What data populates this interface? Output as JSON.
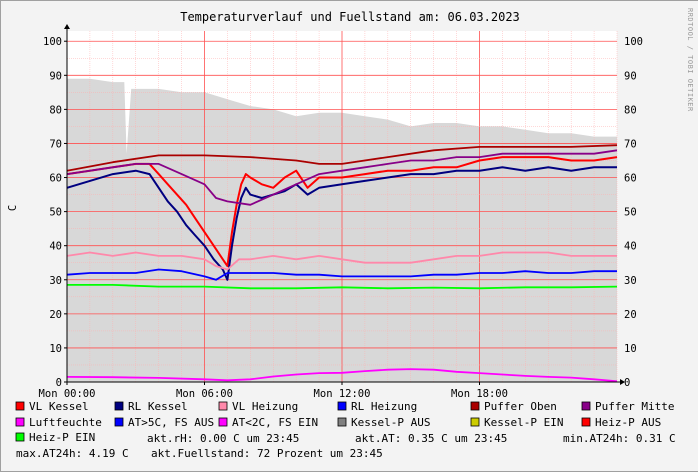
{
  "chart_data": {
    "type": "line",
    "title": "Temperaturverlauf und Fuellstand am: 06.03.2023",
    "ylabel": "C",
    "side_text": "RRDTOOL / TOBI OETIKER",
    "ylim": [
      0,
      103
    ],
    "yticks": [
      0,
      10,
      20,
      30,
      40,
      50,
      60,
      70,
      80,
      90,
      100
    ],
    "ytick_labels": [
      "0",
      "10",
      "20",
      "30",
      "40",
      "50",
      "60",
      "70",
      "80",
      "90",
      "100"
    ],
    "xlim": [
      0,
      24
    ],
    "xticks": [
      0,
      6,
      12,
      18
    ],
    "xtick_labels": [
      "Mon 00:00",
      "Mon 06:00",
      "Mon 12:00",
      "Mon 18:00"
    ],
    "grid": true,
    "legend_position": "bottom",
    "series": [
      {
        "name": "VL Kessel",
        "color": "#ff0000",
        "x": [
          0,
          1,
          2,
          3,
          3.6,
          4,
          4.4,
          4.8,
          5.2,
          5.6,
          6,
          6.4,
          6.8,
          7,
          7.2,
          7.4,
          7.6,
          7.8,
          8,
          8.5,
          9,
          9.5,
          10,
          10.5,
          11,
          12,
          13,
          14,
          15,
          16,
          17,
          18,
          19,
          20,
          21,
          22,
          23,
          24
        ],
        "y": [
          61,
          62,
          63,
          64,
          64,
          61,
          58,
          55,
          52,
          48,
          44,
          40,
          36,
          34,
          44,
          52,
          58,
          61,
          60,
          58,
          57,
          60,
          62,
          57,
          60,
          60,
          61,
          62,
          62,
          63,
          63,
          65,
          66,
          66,
          66,
          65,
          65,
          66
        ]
      },
      {
        "name": "RL Kessel",
        "color": "#000080",
        "x": [
          0,
          1,
          2,
          3,
          3.6,
          4,
          4.4,
          4.8,
          5.2,
          5.6,
          6,
          6.4,
          6.8,
          7,
          7.2,
          7.4,
          7.6,
          7.8,
          8,
          8.5,
          9,
          9.5,
          10,
          10.5,
          11,
          12,
          13,
          14,
          15,
          16,
          17,
          18,
          19,
          20,
          21,
          22,
          23,
          24
        ],
        "y": [
          57,
          59,
          61,
          62,
          61,
          57,
          53,
          50,
          46,
          43,
          40,
          36,
          33,
          30,
          40,
          48,
          54,
          57,
          55,
          54,
          55,
          56,
          58,
          55,
          57,
          58,
          59,
          60,
          61,
          61,
          62,
          62,
          63,
          62,
          63,
          62,
          63,
          63
        ]
      },
      {
        "name": "VL Heizung",
        "color": "#ff88aa",
        "x": [
          0,
          1,
          2,
          3,
          4,
          5,
          6,
          6.5,
          7,
          7.5,
          8,
          9,
          10,
          11,
          12,
          13,
          14,
          15,
          16,
          17,
          18,
          19,
          20,
          21,
          22,
          23,
          24
        ],
        "y": [
          37,
          38,
          37,
          38,
          37,
          37,
          36,
          34,
          33,
          36,
          36,
          37,
          36,
          37,
          36,
          35,
          35,
          35,
          36,
          37,
          37,
          38,
          38,
          38,
          37,
          37,
          37
        ]
      },
      {
        "name": "RL Heizung",
        "color": "#0000ff",
        "x": [
          0,
          1,
          2,
          3,
          4,
          5,
          6,
          6.5,
          7,
          7.5,
          8,
          9,
          10,
          11,
          12,
          13,
          14,
          15,
          16,
          17,
          18,
          19,
          20,
          21,
          22,
          23,
          24
        ],
        "y": [
          31.5,
          32,
          32,
          32,
          33,
          32.5,
          31,
          30,
          32,
          32,
          32,
          32,
          31.5,
          31.5,
          31,
          31,
          31,
          31,
          31.5,
          31.5,
          32,
          32,
          32.5,
          32,
          32,
          32.5,
          32.5
        ]
      },
      {
        "name": "Puffer Oben",
        "color": "#aa0000",
        "x": [
          0,
          2,
          4,
          6,
          8,
          10,
          11,
          11.5,
          12,
          14,
          16,
          18,
          20,
          22,
          24
        ],
        "y": [
          62,
          64.5,
          66.5,
          66.5,
          66,
          65,
          64,
          64,
          64,
          66,
          68,
          69,
          69,
          69,
          69.5
        ]
      },
      {
        "name": "Puffer Mitte",
        "color": "#880088",
        "x": [
          0,
          2,
          3,
          4,
          5,
          6,
          6.5,
          7,
          8,
          9,
          10,
          11,
          12,
          13,
          14,
          15,
          16,
          17,
          18,
          19,
          20,
          21,
          22,
          23,
          24
        ],
        "y": [
          61,
          63,
          64,
          64,
          61,
          58,
          54,
          53,
          52,
          55,
          58,
          61,
          62,
          63,
          64,
          65,
          65,
          66,
          66,
          67,
          67,
          67,
          67,
          67,
          68
        ]
      },
      {
        "name": "Luftfeuchte",
        "color": "#ff00ff",
        "x": [
          0,
          2,
          4,
          6,
          7,
          8,
          9,
          10,
          11,
          12,
          13,
          14,
          15,
          16,
          17,
          18,
          19,
          20,
          21,
          22,
          23,
          24
        ],
        "y": [
          1.5,
          1.4,
          1.2,
          0.8,
          0.5,
          0.8,
          1.6,
          2.2,
          2.6,
          2.7,
          3.2,
          3.6,
          3.8,
          3.6,
          3.0,
          2.6,
          2.2,
          1.8,
          1.5,
          1.3,
          0.8,
          0.2
        ]
      },
      {
        "name": "Heiz-P EIN",
        "color": "#00ff00",
        "x": [
          0,
          2,
          4,
          6,
          8,
          10,
          12,
          14,
          16,
          18,
          20,
          22,
          24
        ],
        "y": [
          28.5,
          28.5,
          28,
          28,
          27.5,
          27.5,
          27.8,
          27.5,
          27.7,
          27.5,
          27.8,
          27.8,
          28
        ]
      },
      {
        "name": "Fuellstand",
        "color": "#d8d8d8",
        "x": [
          0,
          1,
          2,
          2.5,
          2.6,
          2.8,
          3,
          4,
          5,
          6,
          6.5,
          7,
          8,
          9,
          10,
          11,
          12,
          13,
          14,
          15,
          16,
          17,
          18,
          19,
          20,
          21,
          22,
          23,
          24
        ],
        "y": [
          89,
          89,
          88,
          88,
          67,
          86,
          86,
          86,
          85,
          85,
          84,
          83,
          81,
          80,
          78,
          79,
          79,
          78,
          77,
          75,
          76,
          76,
          75,
          75,
          74,
          73,
          73,
          72,
          72
        ]
      }
    ],
    "legend": [
      {
        "label": "VL Kessel",
        "color": "#ff0000"
      },
      {
        "label": "RL Kessel",
        "color": "#000080"
      },
      {
        "label": "VL Heizung",
        "color": "#ff88aa"
      },
      {
        "label": "RL Heizung",
        "color": "#0000ff"
      },
      {
        "label": "Puffer Oben",
        "color": "#aa0000"
      },
      {
        "label": "Puffer Mitte",
        "color": "#880088"
      },
      {
        "label": "Luftfeuchte",
        "color": "#ff00ff"
      },
      {
        "label": "AT>5C, FS AUS",
        "color": "#0000ff"
      },
      {
        "label": "AT<2C, FS EIN",
        "color": "#ff00ff"
      },
      {
        "label": "Kessel-P AUS",
        "color": "#808080"
      },
      {
        "label": "Kessel-P EIN",
        "color": "#cccc00"
      },
      {
        "label": "Heiz-P AUS",
        "color": "#ff0000"
      },
      {
        "label": "Heiz-P EIN",
        "color": "#00ff00"
      }
    ],
    "stats": {
      "rh": "akt.rH: 0.00 C um 23:45",
      "at": "akt.AT: 0.35 C um 23:45",
      "min": "min.AT24h: 0.31 C",
      "max": "max.AT24h: 4.19 C",
      "fuell": "akt.Fuellstand:   72 Prozent um 23:45"
    }
  }
}
